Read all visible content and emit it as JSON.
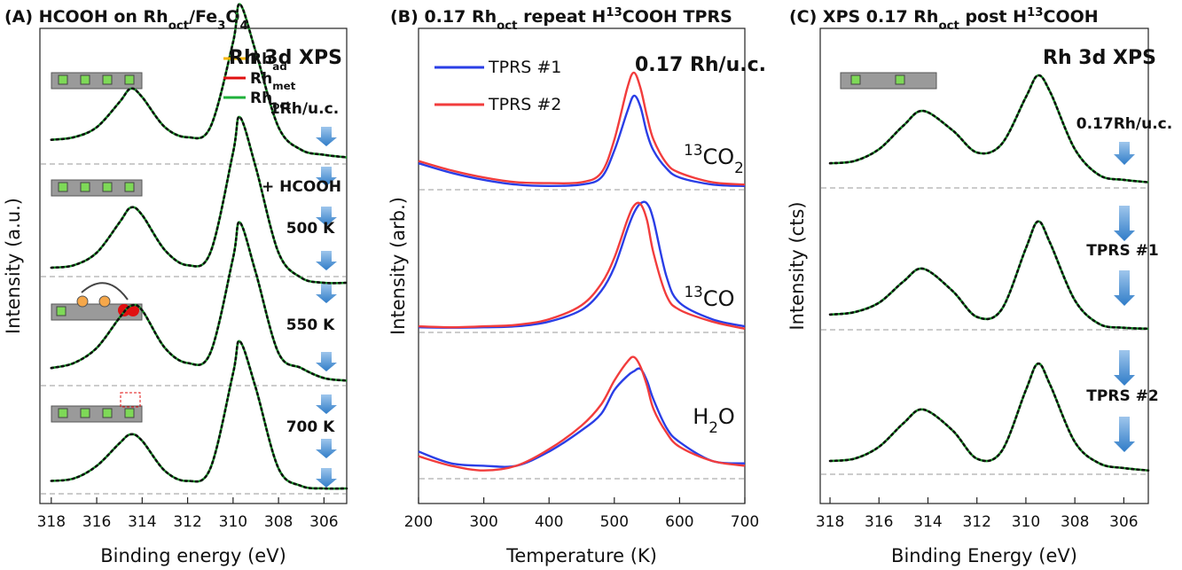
{
  "chart_data": [
    {
      "type": "line",
      "title": [
        {
          "t": "(A) HCOOH on Rh"
        },
        {
          "sub": "oct"
        },
        {
          "t": "/Fe"
        },
        {
          "sub": "3"
        },
        {
          "t": "O"
        },
        {
          "sub": "4"
        }
      ],
      "xlabel": "Binding energy (eV)",
      "ylabel": "Intensity (a.u.)",
      "xlim": [
        318.5,
        305
      ],
      "ylim": [
        0,
        100
      ],
      "xticks": [
        318,
        316,
        314,
        312,
        310,
        308,
        306
      ],
      "x": [
        318,
        317,
        316,
        315,
        314.5,
        314,
        313,
        312,
        311,
        310,
        309.7,
        309,
        308,
        307,
        306,
        305
      ],
      "fit_color": "#1a9e2a",
      "series": [
        {
          "color": "#111111",
          "values": [
            72.5,
            73,
            75,
            80,
            82.7,
            81,
            75,
            73,
            75,
            92,
            99.5,
            90,
            75,
            70.5,
            69.5,
            69
          ]
        },
        {
          "color": "#111111",
          "values": [
            47,
            47.5,
            50,
            56,
            59,
            57.5,
            50.5,
            47.5,
            50,
            70,
            77,
            67,
            50,
            45,
            44,
            44
          ]
        },
        {
          "color": "#111111",
          "values": [
            27,
            28,
            31,
            37,
            39.4,
            38.5,
            31,
            28,
            30,
            49,
            56,
            46,
            30,
            27,
            25,
            24.5
          ]
        },
        {
          "color": "#111111",
          "values": [
            4.5,
            5,
            7.5,
            12,
            13.8,
            12.5,
            6.5,
            4.5,
            7,
            26,
            32.3,
            23,
            7,
            3.5,
            3,
            3
          ]
        }
      ],
      "legend": [
        {
          "parts": [
            {
              "t": "Rh"
            },
            {
              "sub": "ad"
            }
          ],
          "color": "#f5b400"
        },
        {
          "parts": [
            {
              "t": "Rh"
            },
            {
              "sub": "met"
            }
          ],
          "color": "#e01010"
        },
        {
          "parts": [
            {
              "t": "Rh"
            },
            {
              "sub": "oct"
            }
          ],
          "color": "#1fb03a"
        }
      ],
      "annotations": [
        {
          "text": "Rh 3d XPS"
        },
        {
          "text": "1Rh/u.c."
        },
        {
          "text": "+ HCOOH"
        },
        {
          "text": "500 K"
        },
        {
          "text": "550 K"
        },
        {
          "text": "700 K"
        }
      ]
    },
    {
      "type": "line",
      "title": [
        {
          "t": "(B) 0.17 Rh"
        },
        {
          "sub": "oct"
        },
        {
          "t": " repeat H"
        },
        {
          "sup": "13"
        },
        {
          "t": "COOH TPRS"
        }
      ],
      "xlabel": "Temperature (K)",
      "ylabel": "Intensity (arb.)",
      "xlim": [
        200,
        700
      ],
      "ylim": [
        0,
        100
      ],
      "xticks": [
        200,
        300,
        400,
        500,
        600,
        700
      ],
      "x": [
        200,
        250,
        300,
        350,
        400,
        450,
        480,
        500,
        520,
        530,
        540,
        550,
        560,
        580,
        600,
        650,
        700
      ],
      "series": [
        {
          "color": "#2a3ee6",
          "values": [
            72,
            70,
            68.5,
            67.5,
            67.2,
            67.5,
            69,
            74.7,
            83,
            86.3,
            84,
            78.4,
            74.7,
            70.9,
            69,
            67.5,
            67.2
          ]
        },
        {
          "color": "#f23c3c",
          "values": [
            72.5,
            70.5,
            69,
            68,
            67.8,
            68,
            70,
            77,
            88,
            91.2,
            88,
            82,
            77,
            72,
            70,
            68,
            67.5
          ]
        },
        {
          "color": "#2a3ee6",
          "values": [
            37.3,
            37.2,
            37.3,
            37.5,
            38.5,
            41,
            45,
            50,
            58,
            61.5,
            63.5,
            63.5,
            60,
            48,
            42.5,
            39,
            37.5
          ]
        },
        {
          "color": "#f23c3c",
          "values": [
            37.5,
            37.3,
            37.5,
            37.8,
            39,
            42,
            46.5,
            52,
            60,
            63,
            63.4,
            60,
            53,
            44,
            41,
            38.5,
            37
          ]
        },
        {
          "color": "#2a3ee6",
          "values": [
            11,
            8.5,
            8,
            8,
            11,
            15.5,
            19,
            24,
            27,
            28,
            28.5,
            26,
            22,
            16,
            13,
            9,
            8.5
          ]
        },
        {
          "color": "#f23c3c",
          "values": [
            10,
            8,
            7,
            8,
            11.5,
            16.5,
            21,
            26,
            30,
            31,
            29,
            25,
            20,
            15,
            12,
            9,
            8
          ]
        }
      ],
      "legend": [
        {
          "name": "TPRS #1",
          "color": "#2a3ee6"
        },
        {
          "name": "TPRS #2",
          "color": "#f23c3c"
        }
      ],
      "annotations": [
        {
          "text": "0.17 Rh/u.c."
        },
        {
          "parts": [
            {
              "sup": "13"
            },
            {
              "t": "CO"
            },
            {
              "sub": "2"
            }
          ]
        },
        {
          "parts": [
            {
              "sup": "13"
            },
            {
              "t": "CO"
            }
          ]
        },
        {
          "parts": [
            {
              "t": "H"
            },
            {
              "sub": "2"
            },
            {
              "t": "O"
            }
          ]
        }
      ]
    },
    {
      "type": "line",
      "title": [
        {
          "t": "(C) XPS 0.17 Rh"
        },
        {
          "sub": "oct"
        },
        {
          "t": " post H"
        },
        {
          "sup": "13"
        },
        {
          "t": "COOH"
        }
      ],
      "xlabel": "Binding Energy (eV)",
      "ylabel": "Intensity (cts)",
      "xlim": [
        318.4,
        305
      ],
      "ylim": [
        0,
        100
      ],
      "xticks": [
        318,
        316,
        314,
        312,
        310,
        308,
        306
      ],
      "x": [
        318,
        317,
        316,
        315,
        314.2,
        313,
        312,
        311,
        310,
        309.5,
        309,
        308,
        307,
        306,
        305
      ],
      "fit_color": "#1a9e2a",
      "series": [
        {
          "color": "#111111",
          "values": [
            72,
            72.5,
            75,
            80,
            83.1,
            79,
            74.3,
            76,
            86,
            90.6,
            87,
            75,
            69.5,
            68.5,
            68
          ]
        },
        {
          "color": "#2a3ee6",
          "values": [
            40,
            40.5,
            42.5,
            47,
            49.7,
            45,
            39.5,
            41,
            54,
            59.7,
            55,
            43,
            38,
            37.2,
            37
          ]
        },
        {
          "color": "#f23c3c",
          "values": [
            9,
            9.5,
            12,
            17,
            19.9,
            15.5,
            9.5,
            11,
            24,
            29.6,
            25,
            13,
            8.5,
            7.5,
            7
          ]
        }
      ],
      "annotations": [
        {
          "text": "Rh 3d XPS"
        },
        {
          "text": "0.17Rh/u.c."
        },
        {
          "text": "TPRS #1"
        },
        {
          "text": "TPRS #2"
        }
      ]
    }
  ]
}
